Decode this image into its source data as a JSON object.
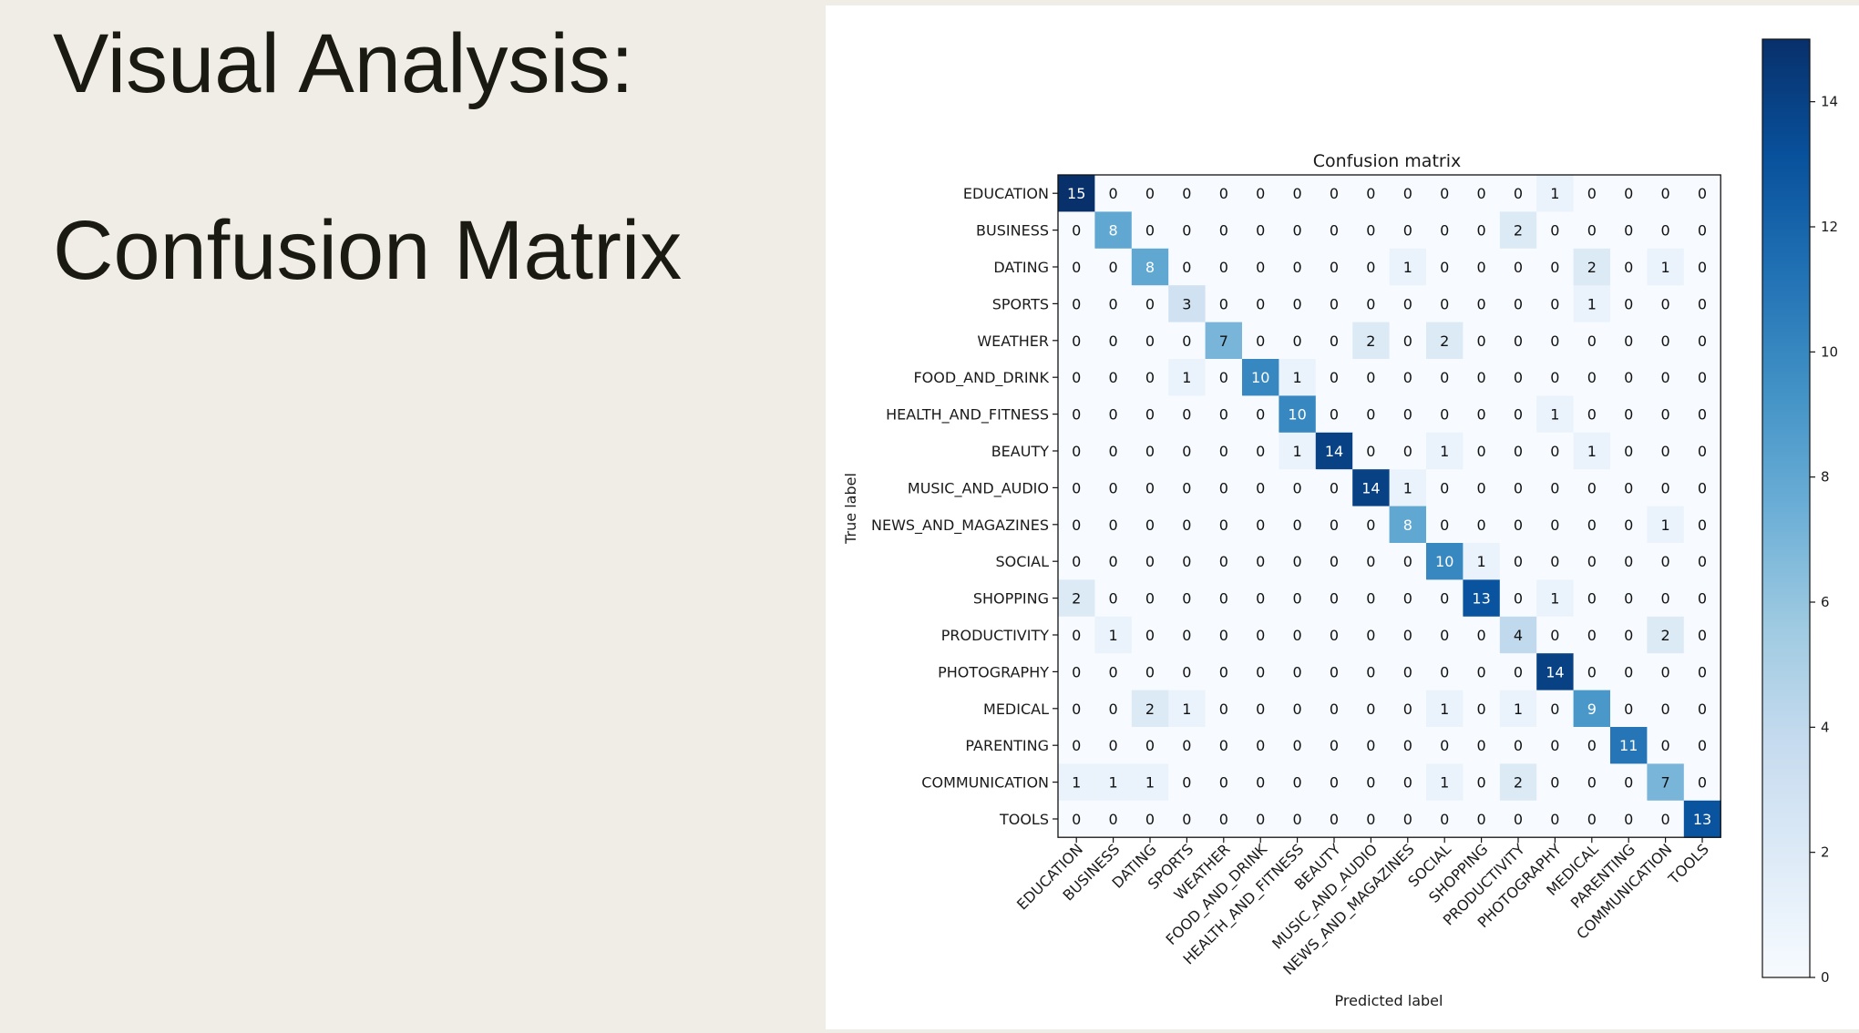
{
  "slide": {
    "title_line1": "Visual Analysis:",
    "title_line2": "Confusion Matrix"
  },
  "chart_data": {
    "type": "heatmap",
    "title": "Confusion matrix",
    "xlabel": "Predicted label",
    "ylabel": "True label",
    "colormap": "Blues",
    "colorbar": {
      "min": 0,
      "max": 15,
      "ticks": [
        0,
        2,
        4,
        6,
        8,
        10,
        12,
        14
      ]
    },
    "grid": false,
    "row_labels": [
      "EDUCATION",
      "BUSINESS",
      "DATING",
      "SPORTS",
      "WEATHER",
      "FOOD_AND_DRINK",
      "HEALTH_AND_FITNESS",
      "BEAUTY",
      "MUSIC_AND_AUDIO",
      "NEWS_AND_MAGAZINES",
      "SOCIAL",
      "SHOPPING",
      "PRODUCTIVITY",
      "PHOTOGRAPHY",
      "MEDICAL",
      "PARENTING",
      "COMMUNICATION",
      "TOOLS"
    ],
    "col_labels": [
      "EDUCATION",
      "BUSINESS",
      "DATING",
      "SPORTS",
      "WEATHER",
      "FOOD_AND_DRINK",
      "HEALTH_AND_FITNESS",
      "BEAUTY",
      "MUSIC_AND_AUDIO",
      "NEWS_AND_MAGAZINES",
      "SOCIAL",
      "SHOPPING",
      "PRODUCTIVITY",
      "PHOTOGRAPHY",
      "MEDICAL",
      "PARENTING",
      "COMMUNICATION",
      "TOOLS"
    ],
    "matrix": [
      [
        15,
        0,
        0,
        0,
        0,
        0,
        0,
        0,
        0,
        0,
        0,
        0,
        0,
        1,
        0,
        0,
        0,
        0
      ],
      [
        0,
        8,
        0,
        0,
        0,
        0,
        0,
        0,
        0,
        0,
        0,
        0,
        2,
        0,
        0,
        0,
        0,
        0
      ],
      [
        0,
        0,
        8,
        0,
        0,
        0,
        0,
        0,
        0,
        1,
        0,
        0,
        0,
        0,
        2,
        0,
        1,
        0
      ],
      [
        0,
        0,
        0,
        3,
        0,
        0,
        0,
        0,
        0,
        0,
        0,
        0,
        0,
        0,
        1,
        0,
        0,
        0
      ],
      [
        0,
        0,
        0,
        0,
        7,
        0,
        0,
        0,
        2,
        0,
        2,
        0,
        0,
        0,
        0,
        0,
        0,
        0
      ],
      [
        0,
        0,
        0,
        1,
        0,
        10,
        1,
        0,
        0,
        0,
        0,
        0,
        0,
        0,
        0,
        0,
        0,
        0
      ],
      [
        0,
        0,
        0,
        0,
        0,
        0,
        10,
        0,
        0,
        0,
        0,
        0,
        0,
        1,
        0,
        0,
        0,
        0
      ],
      [
        0,
        0,
        0,
        0,
        0,
        0,
        1,
        14,
        0,
        0,
        1,
        0,
        0,
        0,
        1,
        0,
        0,
        0
      ],
      [
        0,
        0,
        0,
        0,
        0,
        0,
        0,
        0,
        14,
        1,
        0,
        0,
        0,
        0,
        0,
        0,
        0,
        0
      ],
      [
        0,
        0,
        0,
        0,
        0,
        0,
        0,
        0,
        0,
        8,
        0,
        0,
        0,
        0,
        0,
        0,
        1,
        0
      ],
      [
        0,
        0,
        0,
        0,
        0,
        0,
        0,
        0,
        0,
        0,
        10,
        1,
        0,
        0,
        0,
        0,
        0,
        0
      ],
      [
        2,
        0,
        0,
        0,
        0,
        0,
        0,
        0,
        0,
        0,
        0,
        13,
        0,
        1,
        0,
        0,
        0,
        0
      ],
      [
        0,
        1,
        0,
        0,
        0,
        0,
        0,
        0,
        0,
        0,
        0,
        0,
        4,
        0,
        0,
        0,
        2,
        0
      ],
      [
        0,
        0,
        0,
        0,
        0,
        0,
        0,
        0,
        0,
        0,
        0,
        0,
        0,
        14,
        0,
        0,
        0,
        0
      ],
      [
        0,
        0,
        2,
        1,
        0,
        0,
        0,
        0,
        0,
        0,
        1,
        0,
        1,
        0,
        9,
        0,
        0,
        0
      ],
      [
        0,
        0,
        0,
        0,
        0,
        0,
        0,
        0,
        0,
        0,
        0,
        0,
        0,
        0,
        0,
        11,
        0,
        0
      ],
      [
        1,
        1,
        1,
        0,
        0,
        0,
        0,
        0,
        0,
        0,
        1,
        0,
        2,
        0,
        0,
        0,
        7,
        0
      ],
      [
        0,
        0,
        0,
        0,
        0,
        0,
        0,
        0,
        0,
        0,
        0,
        0,
        0,
        0,
        0,
        0,
        0,
        13
      ]
    ]
  }
}
